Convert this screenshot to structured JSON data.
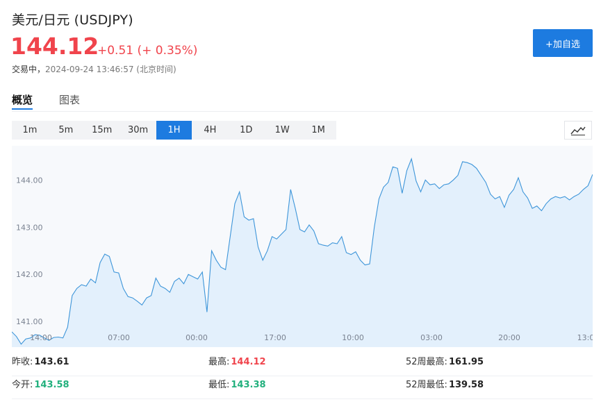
{
  "header": {
    "title": "美元/日元  (USDJPY)",
    "price": "144.12",
    "change": "+0.51 (+ 0.35%)",
    "status_label": "交易中，",
    "timestamp": "2024-09-24 13:46:57 (北京时间)",
    "add_label": "+加自选"
  },
  "tabs": [
    {
      "label": "概览",
      "active": true
    },
    {
      "label": "图表",
      "active": false
    }
  ],
  "intervals": [
    "1m",
    "5m",
    "15m",
    "30m",
    "1H",
    "4H",
    "1D",
    "1W",
    "1M"
  ],
  "active_interval": "1H",
  "colors": {
    "accent": "#1d7be0",
    "up": "#f0444c",
    "down": "#22b07d",
    "line": "#3d95d9",
    "area": "#e3f0fc"
  },
  "chart_data": {
    "type": "area",
    "ylim": [
      140.78,
      144.55
    ],
    "yticks": [
      "141.00",
      "142.00",
      "143.00",
      "144.00"
    ],
    "xticks": [
      "14:00",
      "07:00",
      "00:00",
      "17:00",
      "10:00",
      "03:00",
      "20:00",
      "13:0"
    ],
    "values": [
      140.78,
      140.68,
      140.52,
      140.63,
      140.65,
      140.72,
      140.71,
      140.65,
      140.6,
      140.66,
      140.67,
      140.65,
      140.88,
      141.55,
      141.7,
      141.78,
      141.75,
      141.9,
      141.82,
      142.25,
      142.43,
      142.38,
      142.05,
      142.03,
      141.7,
      141.53,
      141.5,
      141.43,
      141.35,
      141.5,
      141.55,
      141.92,
      141.75,
      141.7,
      141.62,
      141.85,
      141.92,
      141.8,
      142.0,
      141.95,
      141.9,
      142.05,
      141.2,
      142.5,
      142.3,
      142.15,
      142.1,
      142.8,
      143.5,
      143.75,
      143.22,
      143.15,
      143.18,
      142.58,
      142.3,
      142.5,
      142.8,
      142.75,
      142.85,
      142.95,
      143.8,
      143.4,
      142.95,
      142.9,
      143.05,
      142.92,
      142.65,
      142.62,
      142.6,
      142.67,
      142.65,
      142.8,
      142.46,
      142.42,
      142.48,
      142.3,
      142.2,
      142.22,
      143.0,
      143.6,
      143.85,
      143.95,
      144.28,
      144.25,
      143.72,
      144.2,
      144.45,
      143.98,
      143.75,
      144.0,
      143.9,
      143.92,
      143.82,
      143.9,
      143.92,
      144.0,
      144.1,
      144.39,
      144.37,
      144.33,
      144.25,
      144.1,
      143.95,
      143.7,
      143.6,
      143.65,
      143.42,
      143.68,
      143.8,
      144.05,
      143.75,
      143.62,
      143.4,
      143.45,
      143.35,
      143.5,
      143.6,
      143.65,
      143.62,
      143.65,
      143.58,
      143.65,
      143.7,
      143.8,
      143.88,
      144.12
    ]
  },
  "stats": {
    "prev_close_label": "昨收:",
    "prev_close": "143.61",
    "high_label": "最高:",
    "high": "144.12",
    "w52_high_label": "52周最高:",
    "w52_high": "161.95",
    "open_label": "今开:",
    "open": "143.58",
    "low_label": "最低:",
    "low": "143.38",
    "w52_low_label": "52周最低:",
    "w52_low": "139.58"
  }
}
